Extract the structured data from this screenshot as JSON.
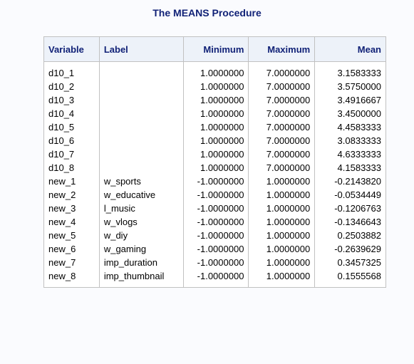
{
  "title": "The MEANS Procedure",
  "table": {
    "headers": {
      "variable": "Variable",
      "label": "Label",
      "minimum": "Minimum",
      "maximum": "Maximum",
      "mean": "Mean"
    },
    "rows": [
      {
        "variable": "d10_1",
        "label": "",
        "minimum": "1.0000000",
        "maximum": "7.0000000",
        "mean": "3.1583333"
      },
      {
        "variable": "d10_2",
        "label": "",
        "minimum": "1.0000000",
        "maximum": "7.0000000",
        "mean": "3.5750000"
      },
      {
        "variable": "d10_3",
        "label": "",
        "minimum": "1.0000000",
        "maximum": "7.0000000",
        "mean": "3.4916667"
      },
      {
        "variable": "d10_4",
        "label": "",
        "minimum": "1.0000000",
        "maximum": "7.0000000",
        "mean": "3.4500000"
      },
      {
        "variable": "d10_5",
        "label": "",
        "minimum": "1.0000000",
        "maximum": "7.0000000",
        "mean": "4.4583333"
      },
      {
        "variable": "d10_6",
        "label": "",
        "minimum": "1.0000000",
        "maximum": "7.0000000",
        "mean": "3.0833333"
      },
      {
        "variable": "d10_7",
        "label": "",
        "minimum": "1.0000000",
        "maximum": "7.0000000",
        "mean": "4.6333333"
      },
      {
        "variable": "d10_8",
        "label": "",
        "minimum": "1.0000000",
        "maximum": "7.0000000",
        "mean": "4.1583333"
      },
      {
        "variable": "new_1",
        "label": "w_sports",
        "minimum": "-1.0000000",
        "maximum": "1.0000000",
        "mean": "-0.2143820"
      },
      {
        "variable": "new_2",
        "label": "w_educative",
        "minimum": "-1.0000000",
        "maximum": "1.0000000",
        "mean": "-0.0534449"
      },
      {
        "variable": "new_3",
        "label": "l_music",
        "minimum": "-1.0000000",
        "maximum": "1.0000000",
        "mean": "-0.1206763"
      },
      {
        "variable": "new_4",
        "label": "w_vlogs",
        "minimum": "-1.0000000",
        "maximum": "1.0000000",
        "mean": "-0.1346643"
      },
      {
        "variable": "new_5",
        "label": "w_diy",
        "minimum": "-1.0000000",
        "maximum": "1.0000000",
        "mean": "0.2503882"
      },
      {
        "variable": "new_6",
        "label": "w_gaming",
        "minimum": "-1.0000000",
        "maximum": "1.0000000",
        "mean": "-0.2639629"
      },
      {
        "variable": "new_7",
        "label": "imp_duration",
        "minimum": "-1.0000000",
        "maximum": "1.0000000",
        "mean": "0.3457325"
      },
      {
        "variable": "new_8",
        "label": "imp_thumbnail",
        "minimum": "-1.0000000",
        "maximum": "1.0000000",
        "mean": "0.1555568"
      }
    ]
  },
  "colors": {
    "header_text": "#112277",
    "header_bg": "#edf2f9",
    "border": "#c1c1c1"
  }
}
